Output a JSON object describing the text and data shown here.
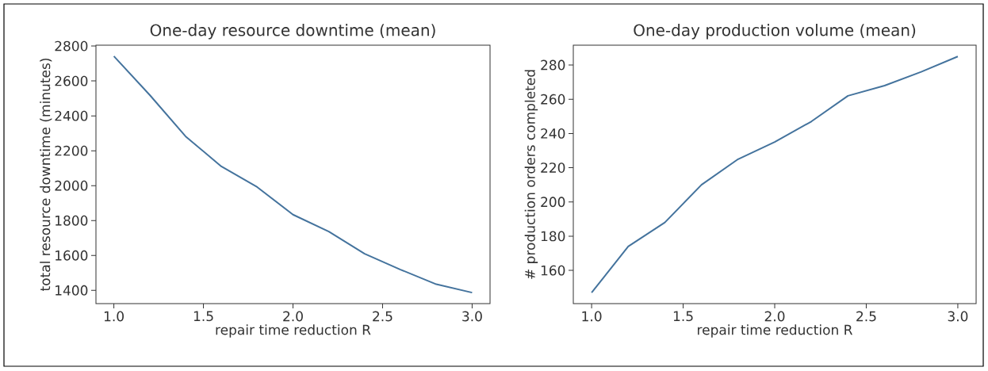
{
  "chart_data": [
    {
      "type": "line",
      "title": "One-day resource downtime (mean)",
      "xlabel": "repair time reduction R",
      "ylabel": "total resource downtime (minutes)",
      "color": "#44739d",
      "x": [
        1.0,
        1.2,
        1.4,
        1.6,
        1.8,
        2.0,
        2.2,
        2.4,
        2.6,
        2.8,
        3.0
      ],
      "values": [
        2742,
        2520,
        2283,
        2110,
        1992,
        1834,
        1737,
        1610,
        1519,
        1435,
        1387
      ],
      "xlim": [
        0.9,
        3.1
      ],
      "ylim": [
        1324,
        2805
      ],
      "xticks": [
        {
          "value": 1,
          "label": "1.0"
        },
        {
          "value": 1.5,
          "label": "1.5"
        },
        {
          "value": 2,
          "label": "2.0"
        },
        {
          "value": 2.5,
          "label": "2.5"
        },
        {
          "value": 3,
          "label": "3.0"
        }
      ],
      "yticks": [
        1400,
        1600,
        1800,
        2000,
        2200,
        2400,
        2600,
        2800
      ]
    },
    {
      "type": "line",
      "title": "One-day production volume (mean)",
      "xlabel": "repair time reduction R",
      "ylabel": "# production orders completed",
      "color": "#44739d",
      "x": [
        1.0,
        1.2,
        1.4,
        1.6,
        1.8,
        2.0,
        2.2,
        2.4,
        2.6,
        2.8,
        3.0
      ],
      "values": [
        147,
        174,
        188,
        210,
        225,
        235,
        247,
        262,
        268,
        276,
        285
      ],
      "xlim": [
        0.9,
        3.1
      ],
      "ylim": [
        140.6,
        291.6
      ],
      "xticks": [
        {
          "value": 1,
          "label": "1.0"
        },
        {
          "value": 1.5,
          "label": "1.5"
        },
        {
          "value": 2,
          "label": "2.0"
        },
        {
          "value": 2.5,
          "label": "2.5"
        },
        {
          "value": 3,
          "label": "3.0"
        }
      ],
      "yticks": [
        160,
        180,
        200,
        220,
        240,
        260,
        280
      ]
    }
  ]
}
